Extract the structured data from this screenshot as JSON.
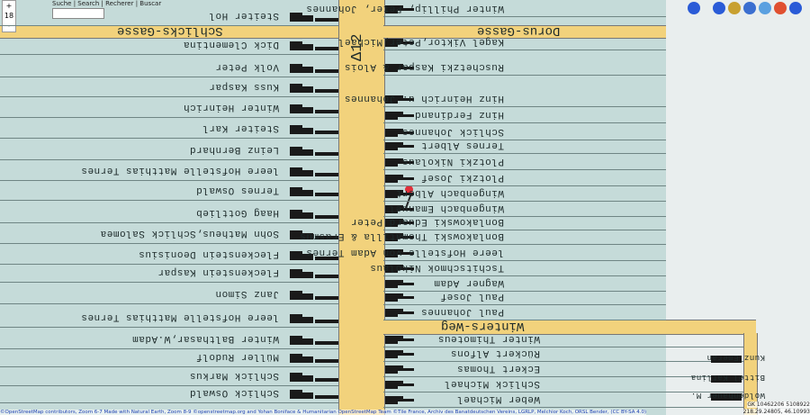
{
  "search": {
    "label": "Suche | Search | Recherer | Buscar"
  },
  "zoom": {
    "in": "+",
    "level": "18",
    "out": "-"
  },
  "roads": {
    "number": "Δ12",
    "left_street": "Schlicks-Gasse",
    "right_street": "Dorus-Gasse",
    "lower_street": "Winters-Weg"
  },
  "left_plots": [
    "Steiter Hol",
    "Dick Clementina",
    "Volk Peter",
    "Kuss Kaspar",
    "Winter Heinrich",
    "Steiter Karl",
    "Leinz Bernhard",
    "leere Hofstelle Matthias Ternes",
    "Ternes Oswald",
    "Haag Gottlieb",
    "Sohn Matheus,Schlick Salomea",
    "Fleckenstein Deonisius",
    "Fleckenstein Kaspar",
    "Janz Simon",
    "leere Hofstelle Matthias Ternes",
    "Winter Balthasar,W.Adam",
    "Müller Rudolf",
    "Schlick Markus",
    "Schlick Oswald"
  ],
  "right_plots": [
    "Winter Phillip, Peter, Johannes",
    "Kagel Viktor,Peter,Michael",
    "Ruschetzki Kaspar & Alois",
    "Hinz Heinrich u. Johannes",
    "Hinz Ferdinand",
    "Schlick Johannes",
    "Ternes Albert",
    "Plotzki Nikolaus",
    "Plotzki Josef",
    "Wingenbach Albert",
    "Wingenbach Emanuel",
    "Bonlakowski Eduard Peter",
    "Bonlakowski Thomatilla & Erasmus",
    "leere Hofstelle von Adam Ternes",
    "Tschitschmok Nikolaus",
    "Wagner Adam",
    "Paul Josef",
    "Paul Johannes",
    "Winter Thimoteus",
    "Rückert Alfons",
    "Eckert Thomas",
    "Schlick Michael",
    "Weber Michael"
  ],
  "far_right_plots": [
    "Kunz Emeran",
    "Bittel Katlina",
    "Woldenhauer M."
  ],
  "attribution": "©OpenStreetMap contributors, Zoom 6-7 Made with Natural Earth, Zoom 8-9 ©openstreetmap.org and Yohan Boniface & Humanitarian OpenStreetMap Team ©Tile France, Archiv des Banatdeutschen Vereins, LGRLP, Melchior Koch, ORSL Bender, (CC BY-SA 4.0)",
  "coordinates": {
    "grid": "GK 10462206 5108922",
    "latlon": "218.29.24805, 46.10993"
  }
}
